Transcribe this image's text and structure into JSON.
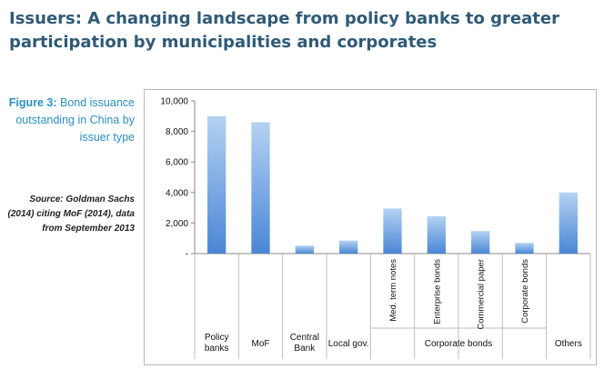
{
  "header": {
    "title": "Issuers: A changing landscape from policy banks to greater participation by municipalities and corporates"
  },
  "figure": {
    "label": "Figure 3:",
    "caption": " Bond issuance outstanding in China by issuer type",
    "source": "Source: Goldman Sachs (2014) citing MoF (2014), data from September 2013"
  },
  "colors": {
    "title": "#2f5a77",
    "figure_label": "#2b8fc2",
    "bar_top": "#b4d2f3",
    "bar_bottom": "#4a86d6"
  },
  "chart_data": {
    "type": "bar",
    "categories": [
      "Policy banks",
      "MoF",
      "Central Bank",
      "Local gov.",
      "Med. term notes",
      "Enterprise bonds",
      "Commercial paper",
      "Corporate bonds",
      "Others"
    ],
    "values": [
      9000,
      8600,
      520,
      850,
      2950,
      2450,
      1480,
      700,
      4000
    ],
    "ylim": [
      0,
      10000
    ],
    "yticks": [
      0,
      2000,
      4000,
      6000,
      8000,
      10000
    ],
    "ytick_labels": [
      "-",
      "2,000",
      "4,000",
      "6,000",
      "8,000",
      "10,000"
    ],
    "bottom_labels": [
      {
        "text": "Policy banks",
        "span": [
          0,
          0
        ]
      },
      {
        "text": "MoF",
        "span": [
          1,
          1
        ]
      },
      {
        "text": "Central Bank",
        "span": [
          2,
          2
        ]
      },
      {
        "text": "Local gov.",
        "span": [
          3,
          3
        ]
      },
      {
        "text": "Corporate bonds",
        "span": [
          4,
          7
        ]
      },
      {
        "text": "Others",
        "span": [
          8,
          8
        ]
      }
    ],
    "rotated_labels": [
      {
        "text": "Med. term notes",
        "index": 4
      },
      {
        "text": "Enterprise bonds",
        "index": 5
      },
      {
        "text": "Commercial paper",
        "index": 6
      },
      {
        "text": "Corporate bonds",
        "index": 7
      }
    ],
    "grid": false,
    "legend": "none"
  }
}
